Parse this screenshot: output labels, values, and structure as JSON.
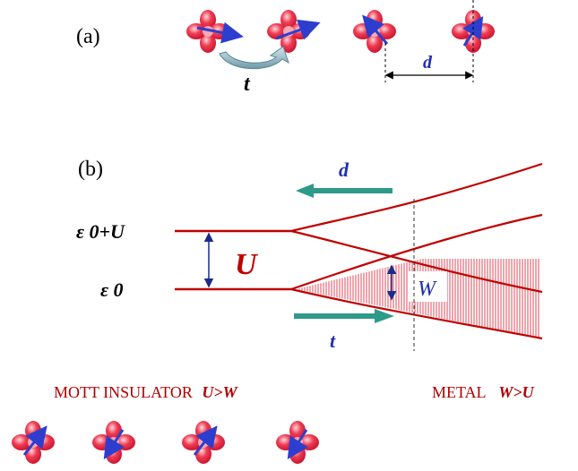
{
  "panel_a": {
    "label": "(a)",
    "hopping_label": "t",
    "distance_label": "d"
  },
  "panel_b": {
    "label": "(b)",
    "upper_level_label": "ε 0+U",
    "lower_level_label": "ε 0",
    "gap_label": "U",
    "bandwidth_label": "W",
    "distance_arrow_label": "d",
    "hopping_arrow_label": "t"
  },
  "regimes": {
    "insulator_label": "MOTT INSULATOR",
    "insulator_condition": "U>W",
    "metal_label": "METAL",
    "metal_condition": "W>U"
  },
  "colors": {
    "orbital_red": "#e8243a",
    "band_red": "#c00000",
    "label_red": "#b00000",
    "spin_blue": "#2d3ecf",
    "teal_arrow": "#2e9a8a",
    "dark_blue_label": "#1f2fb0"
  }
}
